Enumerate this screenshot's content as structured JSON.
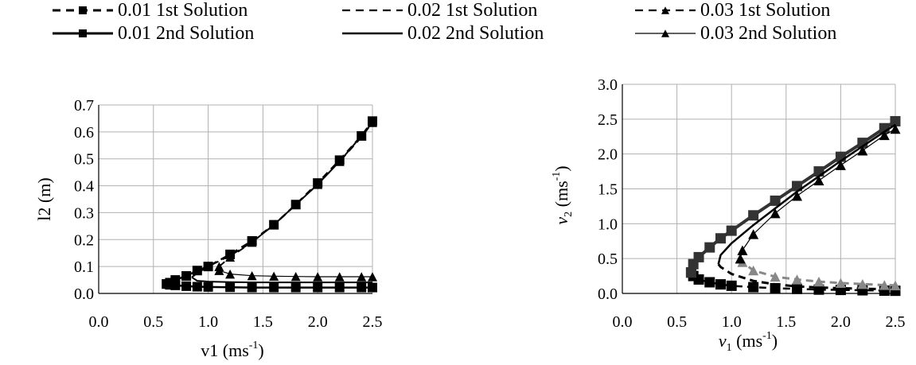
{
  "legend": {
    "items": [
      {
        "label": "0.01 1st Solution",
        "dash": true,
        "marker": "square",
        "color": "#000000",
        "width": 3
      },
      {
        "label": "0.02 1st Solution",
        "dash": true,
        "marker": "none",
        "color": "#000000",
        "width": 2.2
      },
      {
        "label": "0.03 1st Solution",
        "dash": true,
        "marker": "triangle",
        "color": "#000000",
        "width": 2.2
      },
      {
        "label": "0.01 2nd Solution",
        "dash": false,
        "marker": "square",
        "color": "#000000",
        "width": 3
      },
      {
        "label": "0.02 2nd Solution",
        "dash": false,
        "marker": "none",
        "color": "#000000",
        "width": 2.5
      },
      {
        "label": "0.03 2nd Solution",
        "dash": false,
        "marker": "triangle",
        "color": "#000000",
        "width": 1.2
      }
    ]
  },
  "chart_data": [
    {
      "type": "line",
      "xlabel": {
        "main": "v1 (ms",
        "sup": "-1",
        "end": ")"
      },
      "ylabel": "l2 (m)",
      "xlim": [
        0.0,
        2.5
      ],
      "ylim": [
        0.0,
        0.7
      ],
      "xticks": [
        "0.0",
        "0.5",
        "1.0",
        "1.5",
        "2.0",
        "2.5"
      ],
      "yticks": [
        "0.0",
        "0.1",
        "0.2",
        "0.3",
        "0.4",
        "0.5",
        "0.6",
        "0.7"
      ],
      "grid": true,
      "series": [
        {
          "name": "0.01 1st Solution",
          "dash": true,
          "marker": "square",
          "color": "#000000",
          "width": 2.5,
          "x": [
            0.62,
            0.65,
            0.7,
            0.8,
            0.9,
            1.0,
            1.2,
            1.4,
            1.6,
            1.8,
            2.0,
            2.2,
            2.4,
            2.5
          ],
          "y": [
            0.035,
            0.04,
            0.05,
            0.065,
            0.085,
            0.1,
            0.145,
            0.195,
            0.255,
            0.33,
            0.41,
            0.495,
            0.585,
            0.64
          ]
        },
        {
          "name": "0.01 2nd Solution",
          "dash": false,
          "marker": "square",
          "color": "#000000",
          "width": 2.5,
          "x": [
            0.62,
            0.65,
            0.7,
            0.8,
            0.9,
            1.0,
            1.2,
            1.4,
            1.6,
            1.8,
            2.0,
            2.2,
            2.4,
            2.5
          ],
          "y": [
            0.035,
            0.032,
            0.03,
            0.027,
            0.025,
            0.024,
            0.023,
            0.022,
            0.022,
            0.022,
            0.022,
            0.022,
            0.022,
            0.022
          ]
        },
        {
          "name": "0.02 1st Solution",
          "dash": true,
          "marker": "none",
          "color": "#000000",
          "width": 2,
          "x": [
            0.85,
            0.9,
            1.0,
            1.2,
            1.4,
            1.6,
            1.8,
            2.0,
            2.2,
            2.4,
            2.5
          ],
          "y": [
            0.06,
            0.075,
            0.1,
            0.14,
            0.19,
            0.255,
            0.33,
            0.405,
            0.49,
            0.58,
            0.635
          ]
        },
        {
          "name": "0.02 2nd Solution",
          "dash": false,
          "marker": "none",
          "color": "#000000",
          "width": 2,
          "x": [
            0.85,
            0.9,
            1.0,
            1.2,
            1.4,
            1.6,
            1.8,
            2.0,
            2.2,
            2.4,
            2.5
          ],
          "y": [
            0.06,
            0.047,
            0.044,
            0.042,
            0.041,
            0.041,
            0.041,
            0.041,
            0.041,
            0.041,
            0.041
          ]
        },
        {
          "name": "0.03 1st Solution",
          "dash": true,
          "marker": "triangle",
          "color": "#000000",
          "width": 2,
          "x": [
            1.1,
            1.2,
            1.4,
            1.6,
            1.8,
            2.0,
            2.2,
            2.4,
            2.5
          ],
          "y": [
            0.1,
            0.135,
            0.19,
            0.255,
            0.33,
            0.405,
            0.49,
            0.585,
            0.635
          ]
        },
        {
          "name": "0.03 2nd Solution",
          "dash": false,
          "marker": "triangle",
          "color": "#000000",
          "width": 1.2,
          "x": [
            1.1,
            1.2,
            1.4,
            1.6,
            1.8,
            2.0,
            2.2,
            2.4,
            2.5
          ],
          "y": [
            0.085,
            0.072,
            0.066,
            0.064,
            0.063,
            0.062,
            0.062,
            0.062,
            0.062
          ]
        }
      ]
    },
    {
      "type": "line",
      "xlabel": {
        "main": "v",
        "sub": "1",
        "end": " (ms",
        "sup": "-1",
        "close": ")"
      },
      "ylabel": {
        "main": "v",
        "sub": "2",
        "end": " (ms",
        "sup": "-1",
        "close": ")"
      },
      "xlim": [
        0.0,
        2.5
      ],
      "ylim": [
        0.0,
        3.0
      ],
      "xticks": [
        "0.0",
        "0.5",
        "1.0",
        "1.5",
        "2.0",
        "2.5"
      ],
      "yticks": [
        "0.0",
        "0.5",
        "1.0",
        "1.5",
        "2.0",
        "2.5",
        "3.0"
      ],
      "grid": true,
      "series": [
        {
          "name": "0.01 1st Solution",
          "dash": true,
          "marker": "square",
          "color": "#000000",
          "width": 2.5,
          "x": [
            0.63,
            0.65,
            0.7,
            0.8,
            0.9,
            1.0,
            1.2,
            1.4,
            1.6,
            1.8,
            2.0,
            2.2,
            2.4,
            2.5
          ],
          "y": [
            0.3,
            0.25,
            0.2,
            0.16,
            0.13,
            0.11,
            0.09,
            0.075,
            0.065,
            0.055,
            0.05,
            0.045,
            0.04,
            0.038
          ]
        },
        {
          "name": "0.01 2nd Solution",
          "dash": false,
          "marker": "square",
          "color": "#333333",
          "width": 4,
          "x": [
            0.63,
            0.65,
            0.7,
            0.8,
            0.9,
            1.0,
            1.2,
            1.4,
            1.6,
            1.8,
            2.0,
            2.2,
            2.4,
            2.5
          ],
          "y": [
            0.3,
            0.42,
            0.52,
            0.66,
            0.79,
            0.9,
            1.12,
            1.33,
            1.54,
            1.75,
            1.96,
            2.16,
            2.37,
            2.47
          ]
        },
        {
          "name": "0.02 1st Solution",
          "dash": true,
          "marker": "none",
          "color": "#000000",
          "width": 3,
          "x": [
            0.88,
            0.9,
            1.0,
            1.2,
            1.4,
            1.6,
            1.8,
            2.0,
            2.2,
            2.4,
            2.5
          ],
          "y": [
            0.42,
            0.38,
            0.28,
            0.18,
            0.13,
            0.1,
            0.085,
            0.075,
            0.068,
            0.06,
            0.058
          ]
        },
        {
          "name": "0.02 2nd Solution",
          "dash": false,
          "marker": "none",
          "color": "#000000",
          "width": 2.5,
          "x": [
            0.88,
            0.9,
            1.0,
            1.2,
            1.4,
            1.6,
            1.8,
            2.0,
            2.2,
            2.4,
            2.5
          ],
          "y": [
            0.42,
            0.55,
            0.72,
            0.98,
            1.22,
            1.46,
            1.68,
            1.9,
            2.11,
            2.32,
            2.42
          ]
        },
        {
          "name": "0.03 1st Solution",
          "dash": true,
          "marker": "triangle",
          "color": "#888888",
          "width": 3,
          "x": [
            1.08,
            1.1,
            1.2,
            1.4,
            1.6,
            1.8,
            2.0,
            2.2,
            2.4,
            2.5
          ],
          "y": [
            0.5,
            0.45,
            0.33,
            0.24,
            0.2,
            0.17,
            0.15,
            0.135,
            0.12,
            0.115
          ]
        },
        {
          "name": "0.03 2nd Solution",
          "dash": false,
          "marker": "triangle",
          "color": "#000000",
          "width": 1.2,
          "x": [
            1.08,
            1.1,
            1.2,
            1.4,
            1.6,
            1.8,
            2.0,
            2.2,
            2.4,
            2.5
          ],
          "y": [
            0.5,
            0.62,
            0.85,
            1.15,
            1.4,
            1.62,
            1.84,
            2.05,
            2.27,
            2.36
          ]
        }
      ]
    }
  ]
}
